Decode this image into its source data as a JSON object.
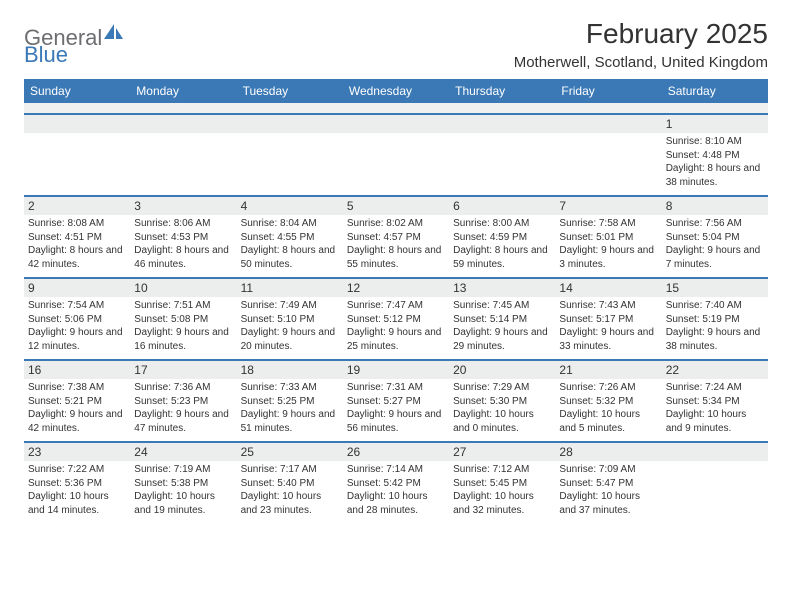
{
  "logo": {
    "part1": "General",
    "part2": "Blue"
  },
  "title": "February 2025",
  "location": "Motherwell, Scotland, United Kingdom",
  "colors": {
    "brand_blue": "#3a78b6",
    "header_gray": "#6d6e71",
    "row_alt": "#eceded",
    "background": "#ffffff",
    "text": "#333333"
  },
  "day_headers": [
    "Sunday",
    "Monday",
    "Tuesday",
    "Wednesday",
    "Thursday",
    "Friday",
    "Saturday"
  ],
  "weeks": [
    [
      null,
      null,
      null,
      null,
      null,
      null,
      {
        "n": "1",
        "sunrise": "Sunrise: 8:10 AM",
        "sunset": "Sunset: 4:48 PM",
        "daylight": "Daylight: 8 hours and 38 minutes."
      }
    ],
    [
      {
        "n": "2",
        "sunrise": "Sunrise: 8:08 AM",
        "sunset": "Sunset: 4:51 PM",
        "daylight": "Daylight: 8 hours and 42 minutes."
      },
      {
        "n": "3",
        "sunrise": "Sunrise: 8:06 AM",
        "sunset": "Sunset: 4:53 PM",
        "daylight": "Daylight: 8 hours and 46 minutes."
      },
      {
        "n": "4",
        "sunrise": "Sunrise: 8:04 AM",
        "sunset": "Sunset: 4:55 PM",
        "daylight": "Daylight: 8 hours and 50 minutes."
      },
      {
        "n": "5",
        "sunrise": "Sunrise: 8:02 AM",
        "sunset": "Sunset: 4:57 PM",
        "daylight": "Daylight: 8 hours and 55 minutes."
      },
      {
        "n": "6",
        "sunrise": "Sunrise: 8:00 AM",
        "sunset": "Sunset: 4:59 PM",
        "daylight": "Daylight: 8 hours and 59 minutes."
      },
      {
        "n": "7",
        "sunrise": "Sunrise: 7:58 AM",
        "sunset": "Sunset: 5:01 PM",
        "daylight": "Daylight: 9 hours and 3 minutes."
      },
      {
        "n": "8",
        "sunrise": "Sunrise: 7:56 AM",
        "sunset": "Sunset: 5:04 PM",
        "daylight": "Daylight: 9 hours and 7 minutes."
      }
    ],
    [
      {
        "n": "9",
        "sunrise": "Sunrise: 7:54 AM",
        "sunset": "Sunset: 5:06 PM",
        "daylight": "Daylight: 9 hours and 12 minutes."
      },
      {
        "n": "10",
        "sunrise": "Sunrise: 7:51 AM",
        "sunset": "Sunset: 5:08 PM",
        "daylight": "Daylight: 9 hours and 16 minutes."
      },
      {
        "n": "11",
        "sunrise": "Sunrise: 7:49 AM",
        "sunset": "Sunset: 5:10 PM",
        "daylight": "Daylight: 9 hours and 20 minutes."
      },
      {
        "n": "12",
        "sunrise": "Sunrise: 7:47 AM",
        "sunset": "Sunset: 5:12 PM",
        "daylight": "Daylight: 9 hours and 25 minutes."
      },
      {
        "n": "13",
        "sunrise": "Sunrise: 7:45 AM",
        "sunset": "Sunset: 5:14 PM",
        "daylight": "Daylight: 9 hours and 29 minutes."
      },
      {
        "n": "14",
        "sunrise": "Sunrise: 7:43 AM",
        "sunset": "Sunset: 5:17 PM",
        "daylight": "Daylight: 9 hours and 33 minutes."
      },
      {
        "n": "15",
        "sunrise": "Sunrise: 7:40 AM",
        "sunset": "Sunset: 5:19 PM",
        "daylight": "Daylight: 9 hours and 38 minutes."
      }
    ],
    [
      {
        "n": "16",
        "sunrise": "Sunrise: 7:38 AM",
        "sunset": "Sunset: 5:21 PM",
        "daylight": "Daylight: 9 hours and 42 minutes."
      },
      {
        "n": "17",
        "sunrise": "Sunrise: 7:36 AM",
        "sunset": "Sunset: 5:23 PM",
        "daylight": "Daylight: 9 hours and 47 minutes."
      },
      {
        "n": "18",
        "sunrise": "Sunrise: 7:33 AM",
        "sunset": "Sunset: 5:25 PM",
        "daylight": "Daylight: 9 hours and 51 minutes."
      },
      {
        "n": "19",
        "sunrise": "Sunrise: 7:31 AM",
        "sunset": "Sunset: 5:27 PM",
        "daylight": "Daylight: 9 hours and 56 minutes."
      },
      {
        "n": "20",
        "sunrise": "Sunrise: 7:29 AM",
        "sunset": "Sunset: 5:30 PM",
        "daylight": "Daylight: 10 hours and 0 minutes."
      },
      {
        "n": "21",
        "sunrise": "Sunrise: 7:26 AM",
        "sunset": "Sunset: 5:32 PM",
        "daylight": "Daylight: 10 hours and 5 minutes."
      },
      {
        "n": "22",
        "sunrise": "Sunrise: 7:24 AM",
        "sunset": "Sunset: 5:34 PM",
        "daylight": "Daylight: 10 hours and 9 minutes."
      }
    ],
    [
      {
        "n": "23",
        "sunrise": "Sunrise: 7:22 AM",
        "sunset": "Sunset: 5:36 PM",
        "daylight": "Daylight: 10 hours and 14 minutes."
      },
      {
        "n": "24",
        "sunrise": "Sunrise: 7:19 AM",
        "sunset": "Sunset: 5:38 PM",
        "daylight": "Daylight: 10 hours and 19 minutes."
      },
      {
        "n": "25",
        "sunrise": "Sunrise: 7:17 AM",
        "sunset": "Sunset: 5:40 PM",
        "daylight": "Daylight: 10 hours and 23 minutes."
      },
      {
        "n": "26",
        "sunrise": "Sunrise: 7:14 AM",
        "sunset": "Sunset: 5:42 PM",
        "daylight": "Daylight: 10 hours and 28 minutes."
      },
      {
        "n": "27",
        "sunrise": "Sunrise: 7:12 AM",
        "sunset": "Sunset: 5:45 PM",
        "daylight": "Daylight: 10 hours and 32 minutes."
      },
      {
        "n": "28",
        "sunrise": "Sunrise: 7:09 AM",
        "sunset": "Sunset: 5:47 PM",
        "daylight": "Daylight: 10 hours and 37 minutes."
      },
      null
    ]
  ]
}
